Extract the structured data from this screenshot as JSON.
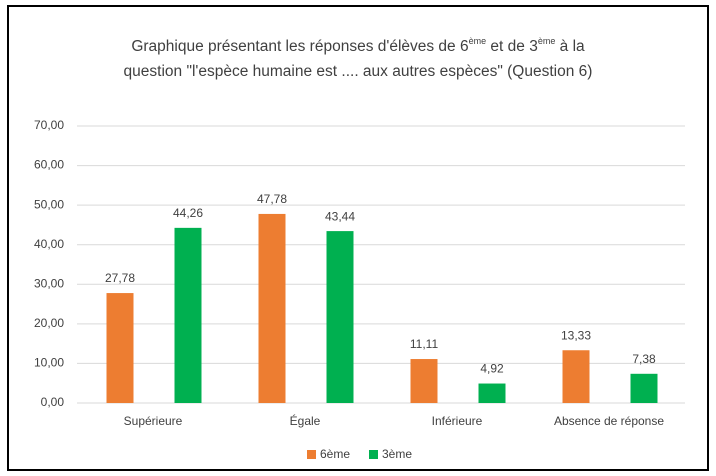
{
  "chart_data": {
    "type": "bar",
    "title_lines": [
      [
        {
          "text": "Graphique présentant les réponses d'élèves de 6"
        },
        {
          "text": "ème",
          "sup": true
        },
        {
          "text": " et de 3"
        },
        {
          "text": "ème",
          "sup": true
        },
        {
          "text": "  à la"
        }
      ],
      [
        {
          "text": "question \"l'espèce humaine est .... aux autres espèces\" (Question 6)"
        }
      ]
    ],
    "categories": [
      "Supérieure",
      "Égale",
      "Inférieure",
      "Absence de réponse"
    ],
    "series": [
      {
        "name": "6ème",
        "color": "#ed7d31",
        "values": [
          27.78,
          47.78,
          11.11,
          13.33
        ],
        "value_labels": [
          "27,78",
          "47,78",
          "11,11",
          "13,33"
        ]
      },
      {
        "name": "3ème",
        "color": "#00b050",
        "values": [
          44.26,
          43.44,
          4.92,
          7.38
        ],
        "value_labels": [
          "44,26",
          "43,44",
          "4,92",
          "7,38"
        ]
      }
    ],
    "ylim": [
      0,
      70
    ],
    "yticks": [
      {
        "value": 0,
        "label": "0,00"
      },
      {
        "value": 10,
        "label": "10,00"
      },
      {
        "value": 20,
        "label": "20,00"
      },
      {
        "value": 30,
        "label": "30,00"
      },
      {
        "value": 40,
        "label": "40,00"
      },
      {
        "value": 50,
        "label": "50,00"
      },
      {
        "value": 60,
        "label": "60,00"
      },
      {
        "value": 70,
        "label": "70,00"
      }
    ],
    "grid": true,
    "legend": "bottom"
  }
}
